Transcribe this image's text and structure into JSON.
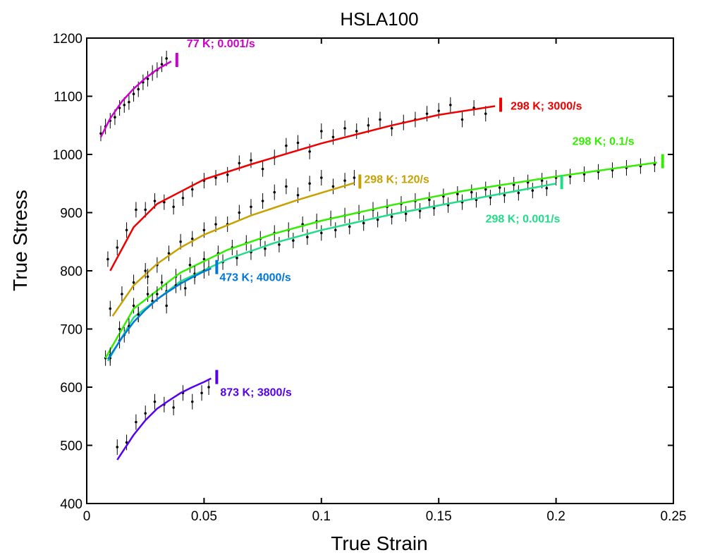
{
  "chart_data": {
    "type": "line",
    "title": "HSLA100",
    "xlabel": "True Strain",
    "ylabel": "True Stress",
    "xlim": [
      0,
      0.25
    ],
    "ylim": [
      400,
      1200
    ],
    "xticks": [
      0,
      0.05,
      0.1,
      0.15,
      0.2,
      0.25
    ],
    "xtick_labels": [
      "0",
      "0.05",
      "0.1",
      "0.15",
      "0.2",
      "0.25"
    ],
    "yticks": [
      400,
      500,
      600,
      700,
      800,
      900,
      1000,
      1100,
      1200
    ],
    "ytick_labels": [
      "400",
      "500",
      "600",
      "700",
      "800",
      "900",
      "1000",
      "1100",
      "1200"
    ],
    "grid": false,
    "series": [
      {
        "name": "77 K; 0.001/s",
        "color": "#cc00cc",
        "x": [
          0.006,
          0.01,
          0.015,
          0.02,
          0.025,
          0.03,
          0.036
        ],
        "y": [
          1030,
          1062,
          1091,
          1113,
          1131,
          1146,
          1160
        ],
        "points_x": [
          0.006,
          0.008,
          0.01,
          0.012,
          0.014,
          0.016,
          0.018,
          0.02,
          0.022,
          0.024,
          0.026,
          0.028,
          0.03,
          0.032,
          0.034
        ],
        "points_y": [
          1036,
          1048,
          1058,
          1064,
          1080,
          1085,
          1090,
          1104,
          1112,
          1124,
          1130,
          1140,
          1145,
          1155,
          1165
        ]
      },
      {
        "name": "298 K; 3000/s",
        "color": "#ee0000",
        "x": [
          0.01,
          0.02,
          0.03,
          0.05,
          0.07,
          0.1,
          0.13,
          0.15,
          0.174
        ],
        "y": [
          800,
          875,
          915,
          957,
          983,
          1019,
          1050,
          1068,
          1083
        ],
        "points_x": [
          0.009,
          0.013,
          0.017,
          0.021,
          0.025,
          0.029,
          0.033,
          0.037,
          0.041,
          0.045,
          0.05,
          0.055,
          0.06,
          0.065,
          0.07,
          0.075,
          0.08,
          0.085,
          0.09,
          0.095,
          0.1,
          0.105,
          0.11,
          0.115,
          0.12,
          0.125,
          0.13,
          0.135,
          0.14,
          0.145,
          0.15,
          0.155,
          0.16,
          0.165,
          0.17
        ],
        "points_y": [
          820,
          840,
          870,
          905,
          905,
          920,
          918,
          910,
          925,
          940,
          955,
          960,
          965,
          985,
          990,
          975,
          995,
          1015,
          1020,
          1005,
          1040,
          1030,
          1045,
          1040,
          1050,
          1060,
          1045,
          1055,
          1060,
          1070,
          1075,
          1085,
          1060,
          1080,
          1070
        ]
      },
      {
        "name": "298 K; 120/s",
        "color": "#c8a000",
        "x": [
          0.011,
          0.02,
          0.03,
          0.04,
          0.05,
          0.07,
          0.09,
          0.114
        ],
        "y": [
          722,
          775,
          812,
          840,
          862,
          895,
          922,
          951
        ],
        "points_x": [
          0.01,
          0.015,
          0.02,
          0.025,
          0.03,
          0.035,
          0.04,
          0.045,
          0.05,
          0.055,
          0.06,
          0.065,
          0.07,
          0.075,
          0.08,
          0.085,
          0.09,
          0.095,
          0.1,
          0.105,
          0.11,
          0.114
        ],
        "points_y": [
          735,
          760,
          780,
          800,
          810,
          830,
          850,
          855,
          870,
          880,
          880,
          900,
          910,
          920,
          935,
          945,
          930,
          950,
          960,
          945,
          955,
          960
        ]
      },
      {
        "name": "298 K; 0.1/s",
        "color": "#33ee00",
        "x": [
          0.008,
          0.02,
          0.04,
          0.06,
          0.08,
          0.1,
          0.13,
          0.16,
          0.2,
          0.243
        ],
        "y": [
          650,
          735,
          797,
          836,
          864,
          886,
          913,
          937,
          962,
          986
        ],
        "points_x": [
          0.008,
          0.014,
          0.02,
          0.026,
          0.032,
          0.038,
          0.044,
          0.05,
          0.056,
          0.062,
          0.068,
          0.074,
          0.08,
          0.086,
          0.092,
          0.098,
          0.104,
          0.11,
          0.116,
          0.122,
          0.128,
          0.134,
          0.14,
          0.146,
          0.152,
          0.158,
          0.164,
          0.17,
          0.176,
          0.182,
          0.188,
          0.194,
          0.2,
          0.206,
          0.212,
          0.218,
          0.224,
          0.23,
          0.236,
          0.242
        ],
        "points_y": [
          650,
          700,
          740,
          760,
          780,
          790,
          810,
          820,
          830,
          840,
          848,
          855,
          865,
          870,
          880,
          885,
          890,
          895,
          900,
          905,
          910,
          915,
          920,
          922,
          928,
          932,
          935,
          940,
          943,
          948,
          952,
          955,
          960,
          962,
          966,
          970,
          973,
          977,
          980,
          983
        ]
      },
      {
        "name": "298 K; 0.001/s",
        "color": "#22dd88",
        "x": [
          0.009,
          0.02,
          0.04,
          0.06,
          0.08,
          0.1,
          0.13,
          0.16,
          0.2
        ],
        "y": [
          645,
          720,
          782,
          820,
          848,
          870,
          897,
          920,
          950
        ],
        "points_x": [
          0.01,
          0.016,
          0.022,
          0.028,
          0.034,
          0.04,
          0.046,
          0.052,
          0.058,
          0.064,
          0.07,
          0.076,
          0.082,
          0.088,
          0.094,
          0.1,
          0.106,
          0.112,
          0.118,
          0.124,
          0.13,
          0.136,
          0.142,
          0.148,
          0.154,
          0.16,
          0.166,
          0.172,
          0.178,
          0.184,
          0.19,
          0.196
        ],
        "points_y": [
          650,
          690,
          725,
          748,
          765,
          780,
          795,
          805,
          815,
          822,
          832,
          838,
          845,
          852,
          858,
          865,
          870,
          876,
          882,
          888,
          893,
          898,
          903,
          908,
          913,
          918,
          922,
          926,
          930,
          934,
          938,
          942
        ]
      },
      {
        "name": "473 K; 4000/s",
        "color": "#0077dd",
        "x": [
          0.009,
          0.015,
          0.02,
          0.025,
          0.03,
          0.035,
          0.04,
          0.045,
          0.05,
          0.053
        ],
        "y": [
          648,
          685,
          712,
          733,
          751,
          765,
          778,
          789,
          799,
          804
        ],
        "points_x": [
          0.01,
          0.014,
          0.018,
          0.022,
          0.026,
          0.03,
          0.034,
          0.038,
          0.042,
          0.046,
          0.05
        ],
        "points_y": [
          655,
          680,
          705,
          725,
          790,
          760,
          740,
          775,
          770,
          790,
          800
        ]
      },
      {
        "name": "873 K; 3800/s",
        "color": "#5500ee",
        "x": [
          0.013,
          0.02,
          0.025,
          0.03,
          0.035,
          0.04,
          0.045,
          0.05,
          0.053
        ],
        "y": [
          475,
          518,
          543,
          563,
          577,
          590,
          600,
          609,
          615
        ],
        "points_x": [
          0.013,
          0.017,
          0.021,
          0.025,
          0.029,
          0.033,
          0.037,
          0.041,
          0.045,
          0.049,
          0.052
        ],
        "points_y": [
          497,
          505,
          540,
          555,
          575,
          570,
          565,
          590,
          575,
          590,
          600
        ]
      }
    ]
  }
}
